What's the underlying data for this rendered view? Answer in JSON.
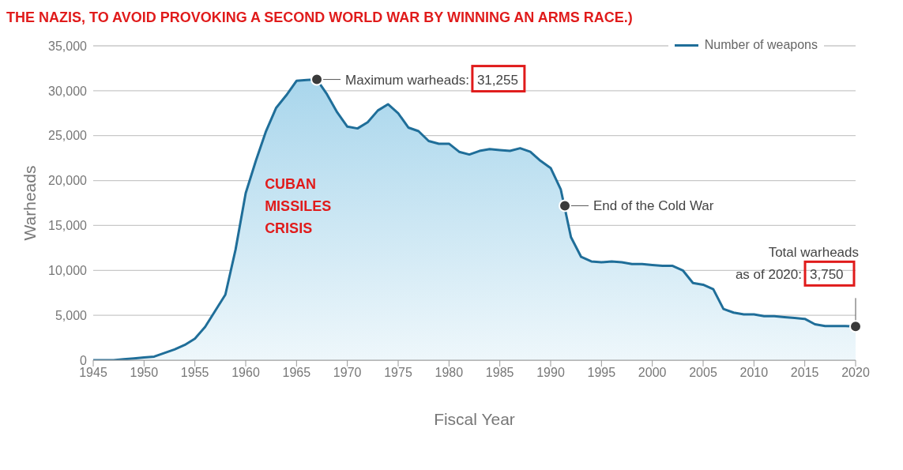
{
  "chart_data": {
    "type": "area",
    "title": "THE NAZIS, TO AVOID PROVOKING A SECOND WORLD WAR BY WINNING AN ARMS RACE.)",
    "xlabel": "Fiscal Year",
    "ylabel": "Warheads",
    "x": [
      1945,
      1946,
      1947,
      1948,
      1949,
      1950,
      1951,
      1952,
      1953,
      1954,
      1955,
      1956,
      1957,
      1958,
      1959,
      1960,
      1961,
      1962,
      1963,
      1964,
      1965,
      1966,
      1967,
      1968,
      1969,
      1970,
      1971,
      1972,
      1973,
      1974,
      1975,
      1976,
      1977,
      1978,
      1979,
      1980,
      1981,
      1982,
      1983,
      1984,
      1985,
      1986,
      1987,
      1988,
      1989,
      1990,
      1991,
      1992,
      1993,
      1994,
      1995,
      1996,
      1997,
      1998,
      1999,
      2000,
      2001,
      2002,
      2003,
      2004,
      2005,
      2006,
      2007,
      2008,
      2009,
      2010,
      2011,
      2012,
      2013,
      2014,
      2015,
      2016,
      2017,
      2018,
      2019,
      2020
    ],
    "series": [
      {
        "name": "Number of weapons",
        "color": "#1f6e99",
        "values": [
          0,
          0,
          0,
          100,
          200,
          300,
          400,
          800,
          1200,
          1700,
          2400,
          3700,
          5500,
          7300,
          12300,
          18600,
          22200,
          25500,
          28100,
          29500,
          31100,
          31200,
          31255,
          29600,
          27600,
          26000,
          25800,
          26500,
          27800,
          28500,
          27500,
          25900,
          25500,
          24400,
          24100,
          24100,
          23200,
          22900,
          23300,
          23500,
          23400,
          23300,
          23600,
          23200,
          22200,
          21400,
          19000,
          13700,
          11500,
          11000,
          10900,
          11000,
          10900,
          10700,
          10700,
          10600,
          10500,
          10500,
          10000,
          8600,
          8400,
          7900,
          5700,
          5300,
          5100,
          5100,
          4900,
          4900,
          4800,
          4700,
          4600,
          4000,
          3800,
          3800,
          3800,
          3750
        ]
      }
    ],
    "xlim": [
      1945,
      2020
    ],
    "xticks": [
      1945,
      1950,
      1955,
      1960,
      1965,
      1970,
      1975,
      1980,
      1985,
      1990,
      1995,
      2000,
      2005,
      2010,
      2015,
      2020
    ],
    "ylim": [
      0,
      35000
    ],
    "yticks": [
      0,
      {
        "value": 5000,
        "label": "5,000"
      },
      {
        "value": 10000,
        "label": "10,000"
      },
      {
        "value": 15000,
        "label": "15,000"
      },
      {
        "value": 20000,
        "label": "20,000"
      },
      {
        "value": 25000,
        "label": "25,000"
      },
      {
        "value": 30000,
        "label": "30,000"
      },
      {
        "value": 35000,
        "label": "35,000"
      }
    ],
    "grid": "y",
    "legend": "top right",
    "marker": "none",
    "annotations": [
      {
        "text": "Maximum warheads: 31,255",
        "x": 1967,
        "y": 31255
      },
      {
        "text": "End of the Cold War",
        "x": 1991.4,
        "y": 17200
      },
      {
        "text": "Total warheads as of 2020: 3,750",
        "x": 2020,
        "y": 3750
      },
      "CUBAN MISSILES CRISIS"
    ]
  }
}
